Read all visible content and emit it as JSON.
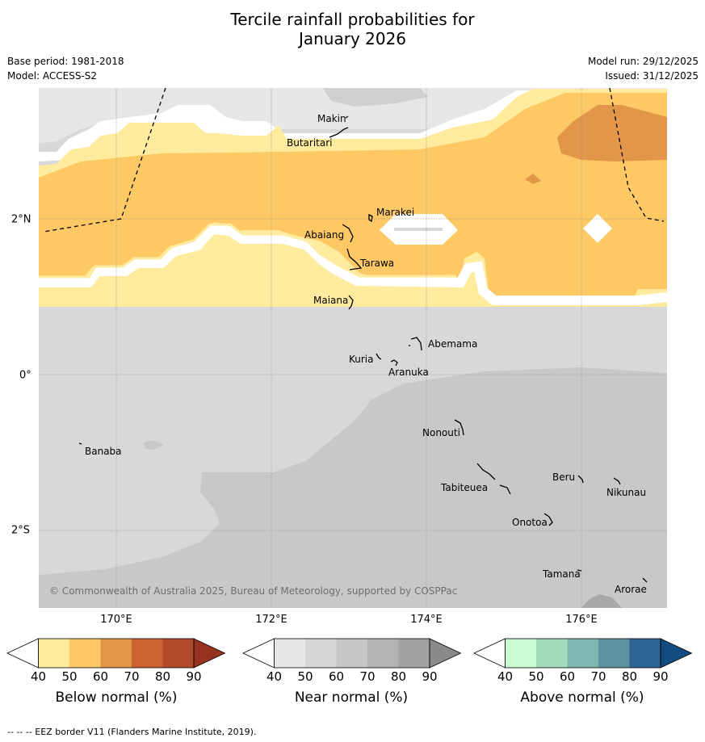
{
  "title_line1": "Tercile rainfall probabilities for",
  "title_line2": "January 2026",
  "meta": {
    "base_period": "Base period: 1981-2018",
    "model": "Model: ACCESS-S2",
    "model_run": "Model run: 29/12/2025",
    "issued": "Issued: 31/12/2025"
  },
  "axes": {
    "longitude_labels": [
      "170°E",
      "172°E",
      "174°E",
      "176°E"
    ],
    "latitude_labels": [
      "2°N",
      "0°",
      "2°S"
    ],
    "lon_range": [
      169,
      177.1
    ],
    "lat_range": [
      -3,
      3.7
    ]
  },
  "places": [
    {
      "name": "Makin"
    },
    {
      "name": "Butaritari"
    },
    {
      "name": "Marakei"
    },
    {
      "name": "Abaiang"
    },
    {
      "name": "Tarawa"
    },
    {
      "name": "Maiana"
    },
    {
      "name": "Abemama"
    },
    {
      "name": "Kuria"
    },
    {
      "name": "Aranuka"
    },
    {
      "name": "Nonouti"
    },
    {
      "name": "Banaba"
    },
    {
      "name": "Beru"
    },
    {
      "name": "Nikunau"
    },
    {
      "name": "Tabiteuea"
    },
    {
      "name": "Onotoa"
    },
    {
      "name": "Tamana"
    },
    {
      "name": "Arorae"
    }
  ],
  "copyright": "© Commonwealth of Australia 2025, Bureau of Meteorology, supported by COSPPac",
  "colorbars": [
    {
      "title": "Below normal (%)",
      "ticks": [
        "40",
        "50",
        "60",
        "70",
        "80",
        "90"
      ],
      "colors": [
        "#ffffff",
        "#feeb9d",
        "#fec964",
        "#e1964a",
        "#cf6233",
        "#b04a2a",
        "#96321f"
      ]
    },
    {
      "title": "Near normal (%)",
      "ticks": [
        "40",
        "50",
        "60",
        "70",
        "80",
        "90"
      ],
      "colors": [
        "#ffffff",
        "#e6e6e6",
        "#d5d5d5",
        "#c6c6c6",
        "#b3b3b3",
        "#a2a2a2",
        "#8a8a8a"
      ]
    },
    {
      "title": "Above normal (%)",
      "ticks": [
        "40",
        "50",
        "60",
        "70",
        "80",
        "90"
      ],
      "colors": [
        "#ffffff",
        "#c9fbd1",
        "#a4dabc",
        "#7fb8b0",
        "#5b94a0",
        "#2f6495",
        "#144b80"
      ]
    }
  ],
  "legend_footer": "--  --  -- EEZ border V11 (Flanders Marine Institute, 2019).",
  "field_colors": {
    "near_lightest": "#e6e6e6",
    "near_light": "#d8d8d8",
    "near_mid": "#c9c9c9",
    "near_dark": "#a8a8a8",
    "below_light": "#feeb9d",
    "below_mid": "#fec964",
    "below_high": "#e1964a"
  }
}
